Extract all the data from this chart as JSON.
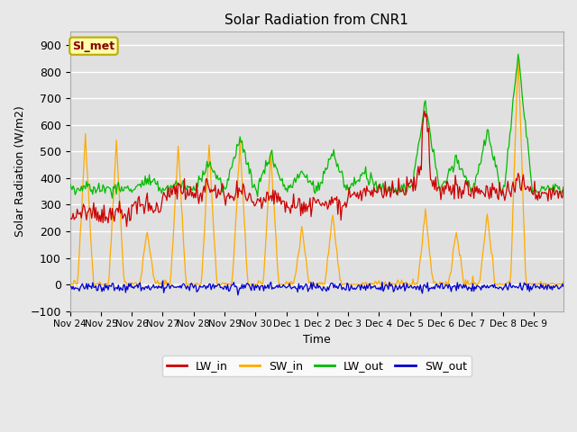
{
  "title": "Solar Radiation from CNR1",
  "xlabel": "Time",
  "ylabel": "Solar Radiation (W/m2)",
  "ylim": [
    -100,
    950
  ],
  "yticks": [
    -100,
    0,
    100,
    200,
    300,
    400,
    500,
    600,
    700,
    800,
    900
  ],
  "fig_bg_color": "#e8e8e8",
  "plot_bg_color": "#e0e0e0",
  "grid_color": "#ffffff",
  "colors": {
    "LW_in": "#cc0000",
    "SW_in": "#ffaa00",
    "LW_out": "#00bb00",
    "SW_out": "#0000cc"
  },
  "annotation_label": "SI_met",
  "annotation_color": "#880000",
  "annotation_bg": "#ffffaa",
  "annotation_edge": "#bbaa00",
  "tick_labels": [
    "Nov 24",
    "Nov 25",
    "Nov 26",
    "Nov 27",
    "Nov 28",
    "Nov 29",
    "Nov 30",
    "Dec 1",
    "Dec 2",
    "Dec 3",
    "Dec 4",
    "Dec 5",
    "Dec 6",
    "Dec 7",
    "Dec 8",
    "Dec 9"
  ],
  "num_points": 480,
  "pts_per_day": 30
}
